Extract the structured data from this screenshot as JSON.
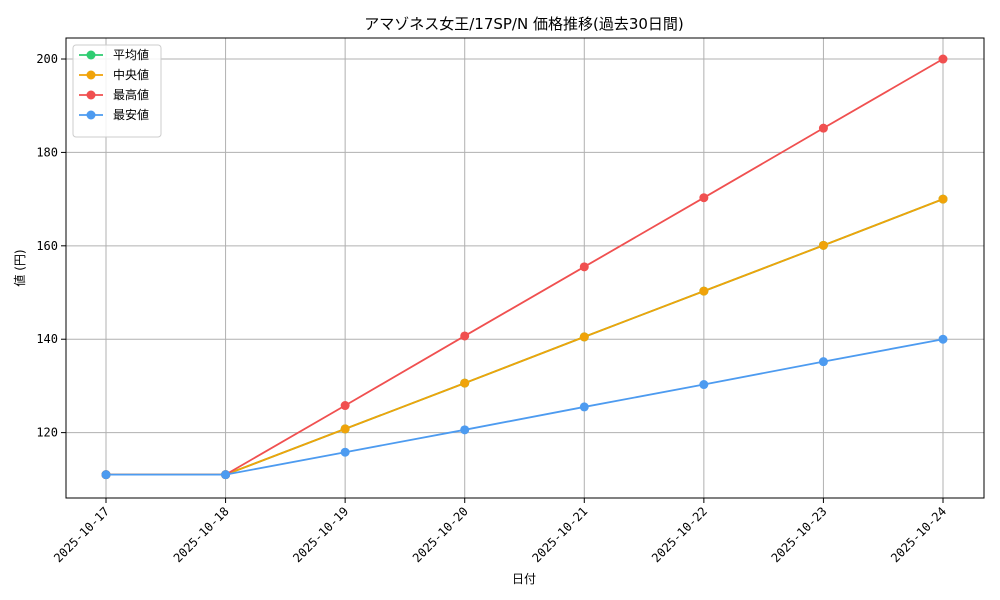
{
  "chart_data": {
    "type": "line",
    "title": "アマゾネス女王/17SP/N 価格推移(過去30日間)",
    "xlabel": "日付",
    "ylabel": "値 (円)",
    "categories": [
      "2025-10-17",
      "2025-10-18",
      "2025-10-19",
      "2025-10-20",
      "2025-10-21",
      "2025-10-22",
      "2025-10-23",
      "2025-10-24"
    ],
    "ylim": [
      106,
      204.5
    ],
    "yticks": [
      120,
      140,
      160,
      180,
      200
    ],
    "grid": true,
    "legend_position": "top-left",
    "series": [
      {
        "name": "平均値",
        "color": "#2ecc71",
        "values": [
          111,
          111,
          120.8,
          130.6,
          140.5,
          150.3,
          160.1,
          170
        ]
      },
      {
        "name": "中央値",
        "color": "#f0a30a",
        "values": [
          111,
          111,
          120.8,
          130.6,
          140.5,
          150.3,
          160.1,
          170
        ]
      },
      {
        "name": "最高値",
        "color": "#f05050",
        "values": [
          111,
          111,
          125.8,
          140.7,
          155.5,
          170.3,
          185.2,
          200
        ]
      },
      {
        "name": "最安値",
        "color": "#4d9bf0",
        "values": [
          111,
          111,
          115.8,
          120.6,
          125.5,
          130.3,
          135.2,
          140
        ]
      }
    ]
  }
}
